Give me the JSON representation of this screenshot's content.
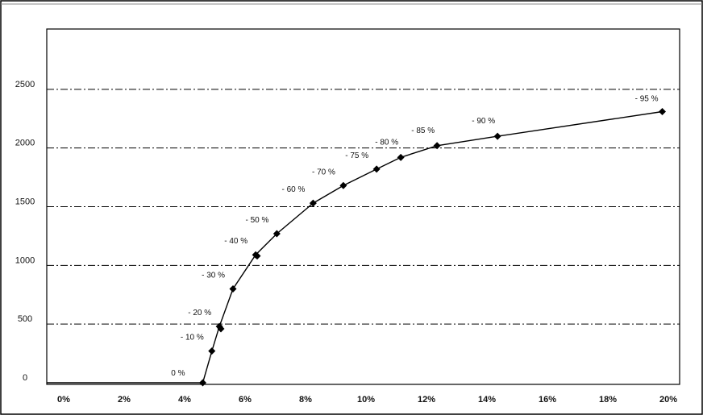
{
  "chart_data": {
    "type": "line",
    "title": "",
    "xlabel": "",
    "ylabel": "",
    "xlim": [
      0,
      20
    ],
    "ylim": [
      0,
      3000
    ],
    "x_ticks": [
      {
        "value": 0,
        "label": "0%"
      },
      {
        "value": 2,
        "label": "2%"
      },
      {
        "value": 4,
        "label": "4%"
      },
      {
        "value": 6,
        "label": "6%"
      },
      {
        "value": 8,
        "label": "8%"
      },
      {
        "value": 10,
        "label": "10%"
      },
      {
        "value": 12,
        "label": "12%"
      },
      {
        "value": 14,
        "label": "14%"
      },
      {
        "value": 16,
        "label": "16%"
      },
      {
        "value": 18,
        "label": "18%"
      },
      {
        "value": 20,
        "label": "20%"
      }
    ],
    "y_ticks": [
      {
        "value": 0,
        "label": "0"
      },
      {
        "value": 500,
        "label": "500"
      },
      {
        "value": 1000,
        "label": "1000"
      },
      {
        "value": 1500,
        "label": "1500"
      },
      {
        "value": 2000,
        "label": "2000"
      },
      {
        "value": 2500,
        "label": "2500"
      }
    ],
    "gridlines": [
      500,
      1000,
      1500,
      2000,
      2500
    ],
    "grid_style": "dash-dot horizontal",
    "legend": "none",
    "series": [
      {
        "color": "#000000",
        "points": [
          {
            "x": 4.6,
            "y": 0,
            "label": "0 %"
          },
          {
            "x": 4.9,
            "y": 270,
            "label": "- 10 %"
          },
          {
            "x": 5.15,
            "y": 480,
            "label": "- 20 %"
          },
          {
            "x": 5.6,
            "y": 800,
            "label": "- 30 %"
          },
          {
            "x": 6.35,
            "y": 1090,
            "label": "- 40 %"
          },
          {
            "x": 7.05,
            "y": 1270,
            "label": "- 50 %"
          },
          {
            "x": 8.25,
            "y": 1530,
            "label": "- 60 %"
          },
          {
            "x": 9.25,
            "y": 1680,
            "label": "- 70 %"
          },
          {
            "x": 10.35,
            "y": 1820,
            "label": "- 75 %"
          },
          {
            "x": 11.15,
            "y": 1920,
            "label": "- 80 %"
          },
          {
            "x": 12.35,
            "y": 2020,
            "label": "- 85 %"
          },
          {
            "x": 14.35,
            "y": 2100,
            "label": "- 90 %"
          },
          {
            "x": 19.8,
            "y": 2310,
            "label": "- 95 %"
          }
        ],
        "extra_markers": [
          {
            "x": 5.2,
            "y": 460
          },
          {
            "x": 6.4,
            "y": 1080
          }
        ]
      }
    ]
  }
}
